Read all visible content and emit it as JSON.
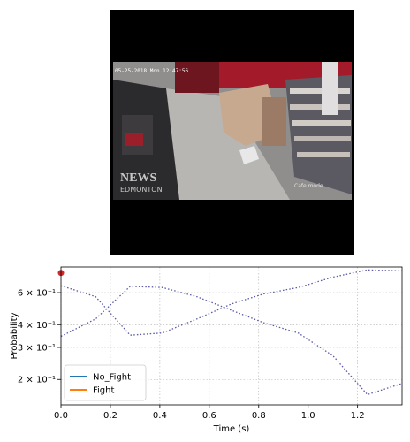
{
  "video": {
    "timestamp": "05-25-2018 Mon 12:47:56",
    "watermark_line1": "NEWS",
    "watermark_line2": "EDMONTON",
    "corner_caption": "Cafe mode"
  },
  "chart_data": {
    "type": "line",
    "xlabel": "Time (s)",
    "ylabel": "Probability",
    "yscale": "log",
    "xlim": [
      0.0,
      1.38
    ],
    "ylim": [
      0.145,
      0.83
    ],
    "xticks": [
      0.0,
      0.2,
      0.4,
      0.6,
      0.8,
      1.0,
      1.2
    ],
    "xtick_labels": [
      "0.0",
      "0.2",
      "0.4",
      "0.6",
      "0.8",
      "1.0",
      "1.2"
    ],
    "yticks": [
      0.2,
      0.3,
      0.4,
      0.6
    ],
    "ytick_labels": [
      "2 × 10⁻¹",
      "3 × 10⁻¹",
      "4 × 10⁻¹",
      "6 × 10⁻¹"
    ],
    "grid": true,
    "legend_position": "lower-left",
    "x": [
      0.0,
      0.14,
      0.28,
      0.41,
      0.55,
      0.69,
      0.82,
      0.96,
      1.1,
      1.24,
      1.38
    ],
    "series": [
      {
        "name": "No_Fight",
        "color": "#1f77b4",
        "values": [
          0.345,
          0.43,
          0.65,
          0.64,
          0.57,
          0.48,
          0.41,
          0.36,
          0.27,
          0.165,
          0.19
        ]
      },
      {
        "name": "Fight",
        "color": "#ff7f0e",
        "values": [
          0.655,
          0.57,
          0.35,
          0.36,
          0.43,
          0.52,
          0.59,
          0.64,
          0.73,
          0.8,
          0.79
        ]
      }
    ],
    "current_marker": {
      "x": 0.0,
      "y": 0.77,
      "color": "#d62728"
    }
  }
}
